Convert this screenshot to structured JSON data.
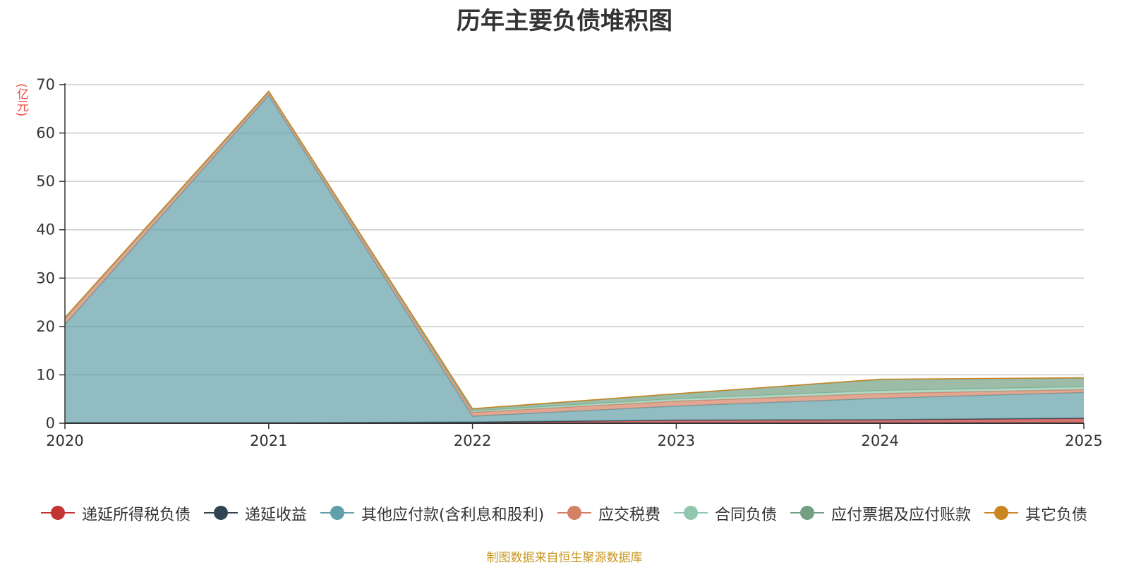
{
  "chart_data": {
    "type": "area",
    "stacked": true,
    "title": "历年主要负债堆积图",
    "y_unit": "(亿元)",
    "x": [
      "2020",
      "2021",
      "2022",
      "2023",
      "2024",
      "2025"
    ],
    "ylim": [
      0,
      70
    ],
    "yticks": [
      0,
      10,
      20,
      30,
      40,
      50,
      60,
      70
    ],
    "grid": true,
    "legend_position": "bottom",
    "series": [
      {
        "name": "递延所得税负债",
        "color": "#c23531",
        "values": [
          0.05,
          0.05,
          0.2,
          0.6,
          0.7,
          1.0
        ]
      },
      {
        "name": "递延收益",
        "color": "#2f4554",
        "values": [
          0.05,
          0.05,
          0.05,
          0.05,
          0.05,
          0.05
        ]
      },
      {
        "name": "其他应付款(含利息和股利)",
        "color": "#61a0a8",
        "values": [
          20.3,
          67.7,
          1.2,
          2.9,
          4.4,
          5.3
        ]
      },
      {
        "name": "应交税费",
        "color": "#d48265",
        "values": [
          1.2,
          0.6,
          0.8,
          1.0,
          1.0,
          0.6
        ]
      },
      {
        "name": "合同负债",
        "color": "#91c7ae",
        "values": [
          0.1,
          0.1,
          0.3,
          0.5,
          0.6,
          0.6
        ]
      },
      {
        "name": "应付票据及应付账款",
        "color": "#749f83",
        "values": [
          0.1,
          0.1,
          0.4,
          1.0,
          2.3,
          1.8
        ]
      },
      {
        "name": "其它负债",
        "color": "#ca8622",
        "values": [
          0.05,
          0.05,
          0.05,
          0.05,
          0.05,
          0.05
        ]
      }
    ]
  },
  "footer": {
    "source": "制图数据来自恒生聚源数据库"
  }
}
